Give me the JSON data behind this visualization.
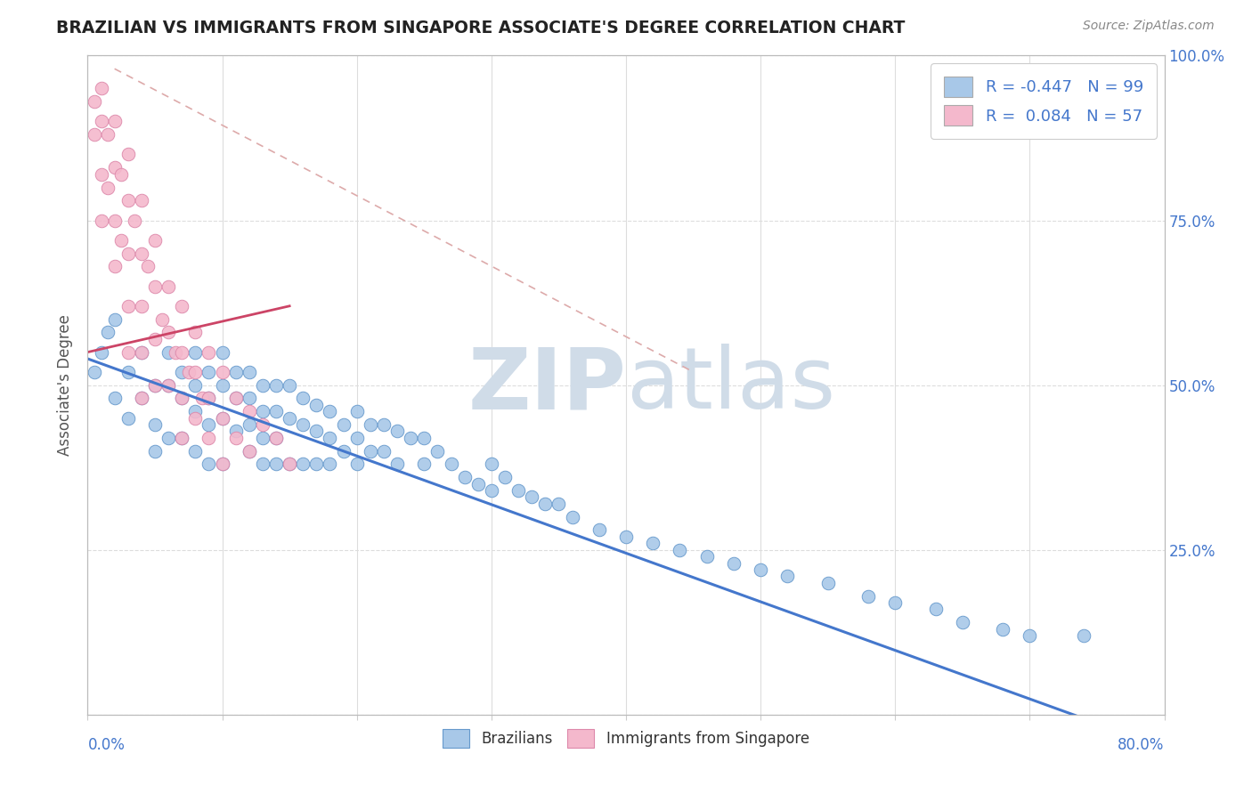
{
  "title": "BRAZILIAN VS IMMIGRANTS FROM SINGAPORE ASSOCIATE'S DEGREE CORRELATION CHART",
  "source": "Source: ZipAtlas.com",
  "ylabel": "Associate's Degree",
  "legend_label1": "Brazilians",
  "legend_label2": "Immigrants from Singapore",
  "R1": -0.447,
  "N1": 99,
  "R2": 0.084,
  "N2": 57,
  "color1": "#a8c8e8",
  "color1_edge": "#6699cc",
  "color2": "#f4b8cc",
  "color2_edge": "#dd88aa",
  "regression_line_color": "#4477cc",
  "pink_regression_color": "#cc4466",
  "dashed_line_color": "#ddaaaa",
  "watermark_color": "#d0dce8",
  "bg_color": "#ffffff",
  "xmin": 0.0,
  "xmax": 0.8,
  "ymin": 0.0,
  "ymax": 1.0,
  "ytick_positions": [
    0.0,
    0.25,
    0.5,
    0.75,
    1.0
  ],
  "ytick_labels_right": [
    "",
    "25.0%",
    "50.0%",
    "75.0%",
    "100.0%"
  ],
  "blue_x": [
    0.005,
    0.01,
    0.015,
    0.02,
    0.02,
    0.03,
    0.03,
    0.04,
    0.04,
    0.05,
    0.05,
    0.05,
    0.06,
    0.06,
    0.06,
    0.07,
    0.07,
    0.07,
    0.08,
    0.08,
    0.08,
    0.08,
    0.09,
    0.09,
    0.09,
    0.09,
    0.1,
    0.1,
    0.1,
    0.1,
    0.11,
    0.11,
    0.11,
    0.12,
    0.12,
    0.12,
    0.12,
    0.13,
    0.13,
    0.13,
    0.13,
    0.14,
    0.14,
    0.14,
    0.14,
    0.15,
    0.15,
    0.15,
    0.16,
    0.16,
    0.16,
    0.17,
    0.17,
    0.17,
    0.18,
    0.18,
    0.18,
    0.19,
    0.19,
    0.2,
    0.2,
    0.2,
    0.21,
    0.21,
    0.22,
    0.22,
    0.23,
    0.23,
    0.24,
    0.25,
    0.25,
    0.26,
    0.27,
    0.28,
    0.29,
    0.3,
    0.3,
    0.31,
    0.32,
    0.33,
    0.34,
    0.35,
    0.36,
    0.38,
    0.4,
    0.42,
    0.44,
    0.46,
    0.48,
    0.5,
    0.52,
    0.55,
    0.58,
    0.6,
    0.63,
    0.65,
    0.68,
    0.7,
    0.74
  ],
  "blue_y": [
    0.52,
    0.55,
    0.58,
    0.6,
    0.48,
    0.52,
    0.45,
    0.55,
    0.48,
    0.5,
    0.44,
    0.4,
    0.55,
    0.5,
    0.42,
    0.52,
    0.48,
    0.42,
    0.55,
    0.5,
    0.46,
    0.4,
    0.52,
    0.48,
    0.44,
    0.38,
    0.55,
    0.5,
    0.45,
    0.38,
    0.52,
    0.48,
    0.43,
    0.52,
    0.48,
    0.44,
    0.4,
    0.5,
    0.46,
    0.42,
    0.38,
    0.5,
    0.46,
    0.42,
    0.38,
    0.5,
    0.45,
    0.38,
    0.48,
    0.44,
    0.38,
    0.47,
    0.43,
    0.38,
    0.46,
    0.42,
    0.38,
    0.44,
    0.4,
    0.46,
    0.42,
    0.38,
    0.44,
    0.4,
    0.44,
    0.4,
    0.43,
    0.38,
    0.42,
    0.42,
    0.38,
    0.4,
    0.38,
    0.36,
    0.35,
    0.38,
    0.34,
    0.36,
    0.34,
    0.33,
    0.32,
    0.32,
    0.3,
    0.28,
    0.27,
    0.26,
    0.25,
    0.24,
    0.23,
    0.22,
    0.21,
    0.2,
    0.18,
    0.17,
    0.16,
    0.14,
    0.13,
    0.12,
    0.12
  ],
  "pink_x": [
    0.005,
    0.005,
    0.01,
    0.01,
    0.01,
    0.01,
    0.015,
    0.015,
    0.02,
    0.02,
    0.02,
    0.02,
    0.025,
    0.025,
    0.03,
    0.03,
    0.03,
    0.03,
    0.03,
    0.035,
    0.04,
    0.04,
    0.04,
    0.04,
    0.04,
    0.045,
    0.05,
    0.05,
    0.05,
    0.05,
    0.055,
    0.06,
    0.06,
    0.06,
    0.065,
    0.07,
    0.07,
    0.07,
    0.07,
    0.075,
    0.08,
    0.08,
    0.08,
    0.085,
    0.09,
    0.09,
    0.09,
    0.1,
    0.1,
    0.1,
    0.11,
    0.11,
    0.12,
    0.12,
    0.13,
    0.14,
    0.15
  ],
  "pink_y": [
    0.93,
    0.88,
    0.95,
    0.9,
    0.82,
    0.75,
    0.88,
    0.8,
    0.9,
    0.83,
    0.75,
    0.68,
    0.82,
    0.72,
    0.85,
    0.78,
    0.7,
    0.62,
    0.55,
    0.75,
    0.78,
    0.7,
    0.62,
    0.55,
    0.48,
    0.68,
    0.72,
    0.65,
    0.57,
    0.5,
    0.6,
    0.65,
    0.58,
    0.5,
    0.55,
    0.62,
    0.55,
    0.48,
    0.42,
    0.52,
    0.58,
    0.52,
    0.45,
    0.48,
    0.55,
    0.48,
    0.42,
    0.52,
    0.45,
    0.38,
    0.48,
    0.42,
    0.46,
    0.4,
    0.44,
    0.42,
    0.38
  ],
  "blue_line_x": [
    0.0,
    0.8
  ],
  "blue_line_y": [
    0.54,
    -0.05
  ],
  "pink_line_x": [
    0.0,
    0.15
  ],
  "pink_line_y": [
    0.55,
    0.62
  ],
  "dashed_line_x": [
    0.02,
    0.45
  ],
  "dashed_line_y": [
    0.98,
    0.52
  ]
}
